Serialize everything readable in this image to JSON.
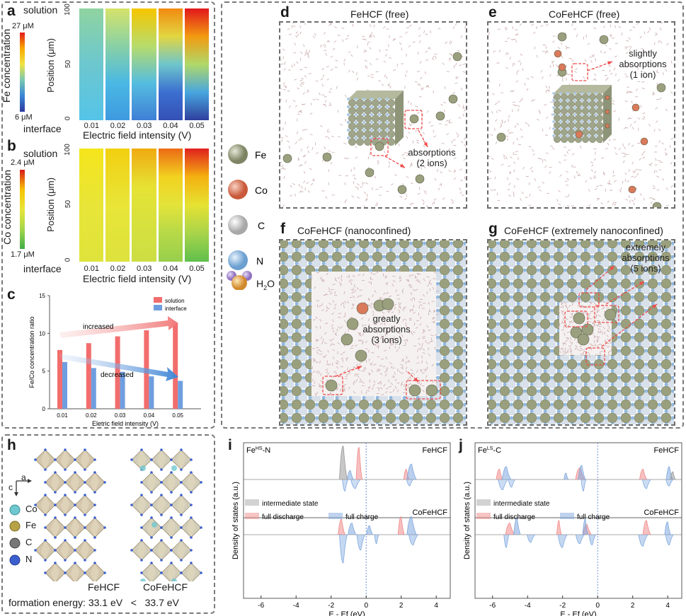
{
  "panels": {
    "a": {
      "letter": "a",
      "colorbar_label": "Fe concentration",
      "cb_max": "27 μM",
      "cb_min": "6 μM",
      "pos_top": "solution",
      "pos_bottom": "interface",
      "ylabel": "Position (μm)",
      "yticks": [
        "0",
        "50",
        "100"
      ],
      "xticks": [
        "0.01",
        "0.02",
        "0.03",
        "0.04",
        "0.05"
      ],
      "xlabel": "Electric field intensity (V)"
    },
    "b": {
      "letter": "b",
      "colorbar_label": "Co concentration",
      "cb_max": "2.4 μM",
      "cb_min": "1.7 μM",
      "pos_top": "solution",
      "pos_bottom": "interface",
      "ylabel": "Position (μm)",
      "yticks": [
        "0",
        "50",
        "100"
      ],
      "xticks": [
        "0.01",
        "0.02",
        "0.03",
        "0.04",
        "0.05"
      ],
      "xlabel": "Electric field intensity (V)"
    },
    "c": {
      "letter": "c",
      "arrow_up": "increased",
      "arrow_down": "decreased"
    },
    "d": {
      "letter": "d",
      "title": "FeHCF (free)",
      "note": "absorptions\n(2 ions)"
    },
    "e": {
      "letter": "e",
      "title": "CoFeHCF (free)",
      "note": "slightly\nabsorptions\n(1 ion)"
    },
    "f": {
      "letter": "f",
      "title": "CoFeHCF (nanoconfined)",
      "note": "greatly\nabsorptions\n(3 ions)"
    },
    "g": {
      "letter": "g",
      "title": "CoFeHCF (extremely nanoconfined)",
      "note": "extremely\nabsorptions\n(5 ions)"
    },
    "legend_dg": [
      "Fe",
      "Co",
      "C",
      "N",
      "H2O"
    ],
    "h": {
      "letter": "h",
      "axes": [
        "c",
        "a"
      ],
      "legend": [
        "Co",
        "Fe",
        "C",
        "N"
      ],
      "label_left": "FeHCF",
      "label_right": "CoFeHCF",
      "formation": "formation energy: 33.1 eV   <   33.7 eV"
    },
    "i": {
      "letter": "i",
      "corner": "Fe",
      "corner_sup": "HS",
      "corner_tail": "-N",
      "top_name": "FeHCF",
      "bottom_name": "CoFeHCF",
      "legend_intermediate": "intermediate state",
      "legend_discharge": "full discharge",
      "legend_charge": "full charge",
      "ylabel": "Density of states (a.u.)",
      "xlabel": "E - Ef (eV)",
      "xticks": [
        "-6",
        "-4",
        "-2",
        "0",
        "2",
        "4"
      ]
    },
    "j": {
      "letter": "j",
      "corner": "Fe",
      "corner_sup": "LS",
      "corner_tail": "-C",
      "top_name": "FeHCF",
      "bottom_name": "CoFeHCF",
      "legend_intermediate": "intermediate state",
      "legend_discharge": "full discharge",
      "legend_charge": "full charge",
      "ylabel": "Density of states (a.u.)",
      "xlabel": "E - Ef (eV)",
      "xticks": [
        "-6",
        "-4",
        "-2",
        "0",
        "2",
        "4"
      ]
    }
  },
  "colors": {
    "solution": "#f26d6d",
    "interface": "#6f9ee0",
    "discharge": "#f08a8a",
    "charge": "#7fa8df",
    "intermediate": "#999999",
    "fe_ball": "#9aa07e",
    "co_ball": "#d97a5a",
    "c_ball": "#cfcfcf",
    "n_ball": "#8fb8e0",
    "arrow": "#f04a4a"
  },
  "chart_data": {
    "type": "bar",
    "title": "",
    "categories": [
      "0.01",
      "0.02",
      "0.03",
      "0.04",
      "0.05"
    ],
    "series": [
      {
        "name": "solution",
        "values": [
          7.8,
          8.7,
          9.6,
          10.4,
          11.3
        ]
      },
      {
        "name": "interface",
        "values": [
          6.2,
          5.4,
          4.9,
          4.3,
          3.7
        ]
      }
    ],
    "xlabel": "Eletric field intensity (V)",
    "ylabel": "Fe/Co concentration ratio",
    "ylim": [
      0,
      15
    ],
    "yticks": [
      0,
      5,
      10,
      15
    ],
    "legend_position": "top-right"
  }
}
